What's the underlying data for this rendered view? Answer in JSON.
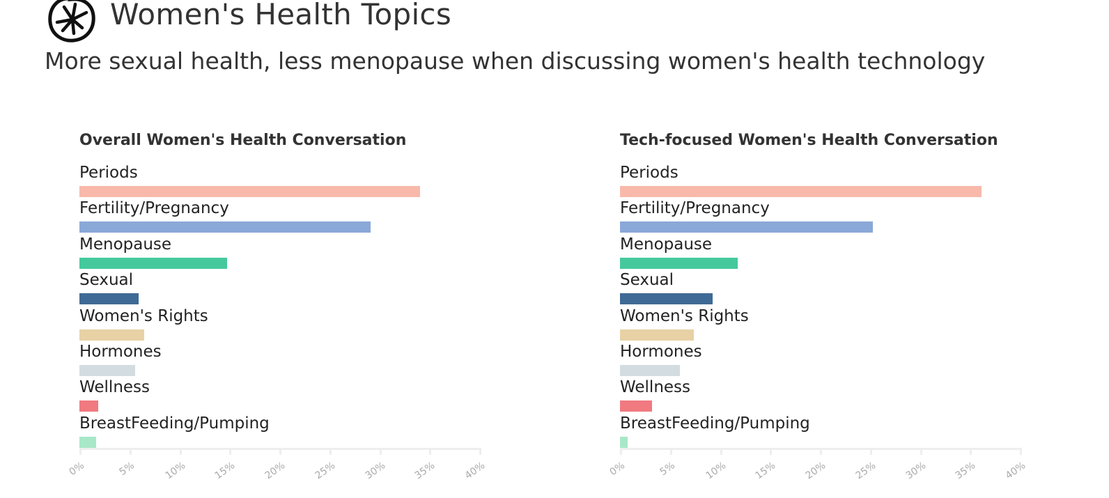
{
  "header": {
    "logo_icon": "asterisk-in-circle-logo",
    "title": "Women's Health Topics",
    "subtitle": "More sexual health, less menopause when discussing women's health technology"
  },
  "chart_data": [
    {
      "type": "bar",
      "orientation": "horizontal",
      "title": "Overall Women's Health Conversation",
      "categories": [
        "Periods",
        "Fertility/Pregnancy",
        "Menopause",
        "Sexual",
        "Women's Rights",
        "Hormones",
        "Wellness",
        "BreastFeeding/Pumping"
      ],
      "values": [
        34.1,
        29.1,
        14.8,
        5.9,
        6.5,
        5.6,
        1.9,
        1.7
      ],
      "xlim": [
        0,
        40
      ],
      "xticks": [
        "0%",
        "5%",
        "10%",
        "15%",
        "20%",
        "25%",
        "30%",
        "35%",
        "40%"
      ],
      "grid": false
    },
    {
      "type": "bar",
      "orientation": "horizontal",
      "title": "Tech-focused Women's Health Conversation",
      "categories": [
        "Periods",
        "Fertility/Pregnancy",
        "Menopause",
        "Sexual",
        "Women's Rights",
        "Hormones",
        "Wellness",
        "BreastFeeding/Pumping"
      ],
      "values": [
        36.2,
        25.3,
        11.8,
        9.3,
        7.4,
        6.0,
        3.2,
        0.8
      ],
      "xlim": [
        0,
        40
      ],
      "xticks": [
        "0%",
        "5%",
        "10%",
        "15%",
        "20%",
        "25%",
        "30%",
        "35%",
        "40%"
      ],
      "grid": false
    }
  ],
  "colors": [
    "#f8b9ab",
    "#8aa8d8",
    "#45c99c",
    "#3f6a95",
    "#e8d1a5",
    "#d3dce1",
    "#f07a80",
    "#a8e8c8"
  ]
}
